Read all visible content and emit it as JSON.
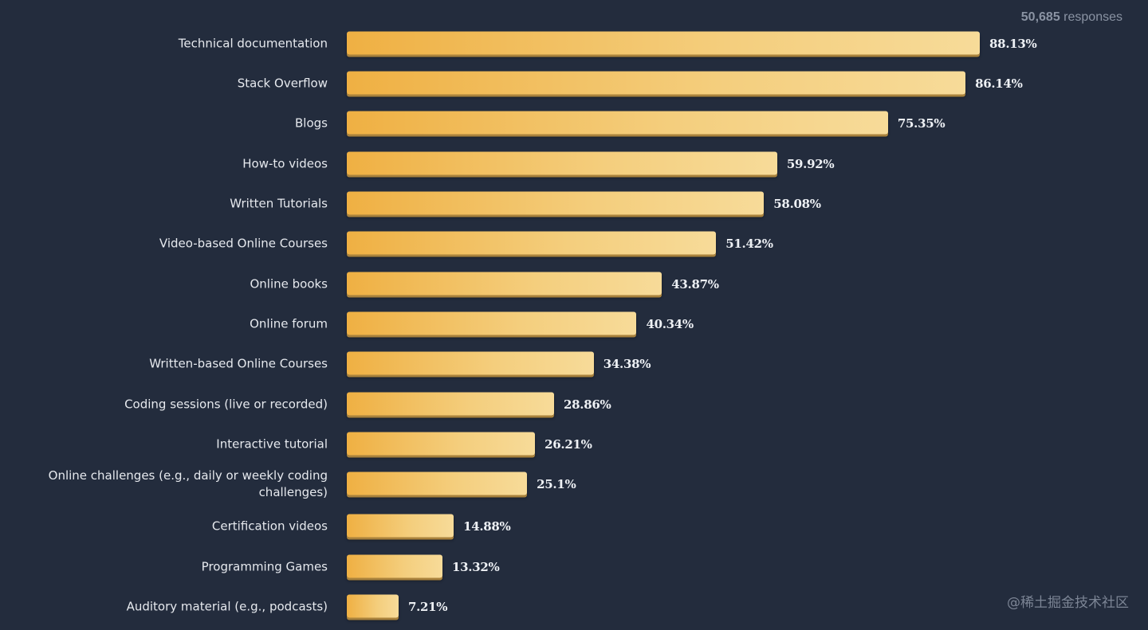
{
  "header": {
    "responses_count": "50,685",
    "responses_label": "responses"
  },
  "watermark": "@稀土掘金技术社区",
  "colors": {
    "background": "#232c3d",
    "bar_start": "#efb043",
    "bar_end": "#f7db99",
    "text": "#e6e9ee",
    "muted": "#8a93a3"
  },
  "chart_data": {
    "type": "bar",
    "orientation": "horizontal",
    "title": "",
    "xlabel": "",
    "ylabel": "",
    "xlim": [
      0,
      100
    ],
    "grid": false,
    "unit": "%",
    "categories": [
      "Technical documentation",
      "Stack Overflow",
      "Blogs",
      "How-to videos",
      "Written Tutorials",
      "Video-based Online Courses",
      "Online books",
      "Online forum",
      "Written-based Online Courses",
      "Coding sessions (live or recorded)",
      "Interactive tutorial",
      "Online challenges (e.g., daily or weekly coding challenges)",
      "Certification videos",
      "Programming Games",
      "Auditory material (e.g., podcasts)"
    ],
    "values": [
      88.13,
      86.14,
      75.35,
      59.92,
      58.08,
      51.42,
      43.87,
      40.34,
      34.38,
      28.86,
      26.21,
      25.1,
      14.88,
      13.32,
      7.21
    ],
    "value_labels": [
      "88.13%",
      "86.14%",
      "75.35%",
      "59.92%",
      "58.08%",
      "51.42%",
      "43.87%",
      "40.34%",
      "34.38%",
      "28.86%",
      "26.21%",
      "25.1%",
      "14.88%",
      "13.32%",
      "7.21%"
    ]
  }
}
